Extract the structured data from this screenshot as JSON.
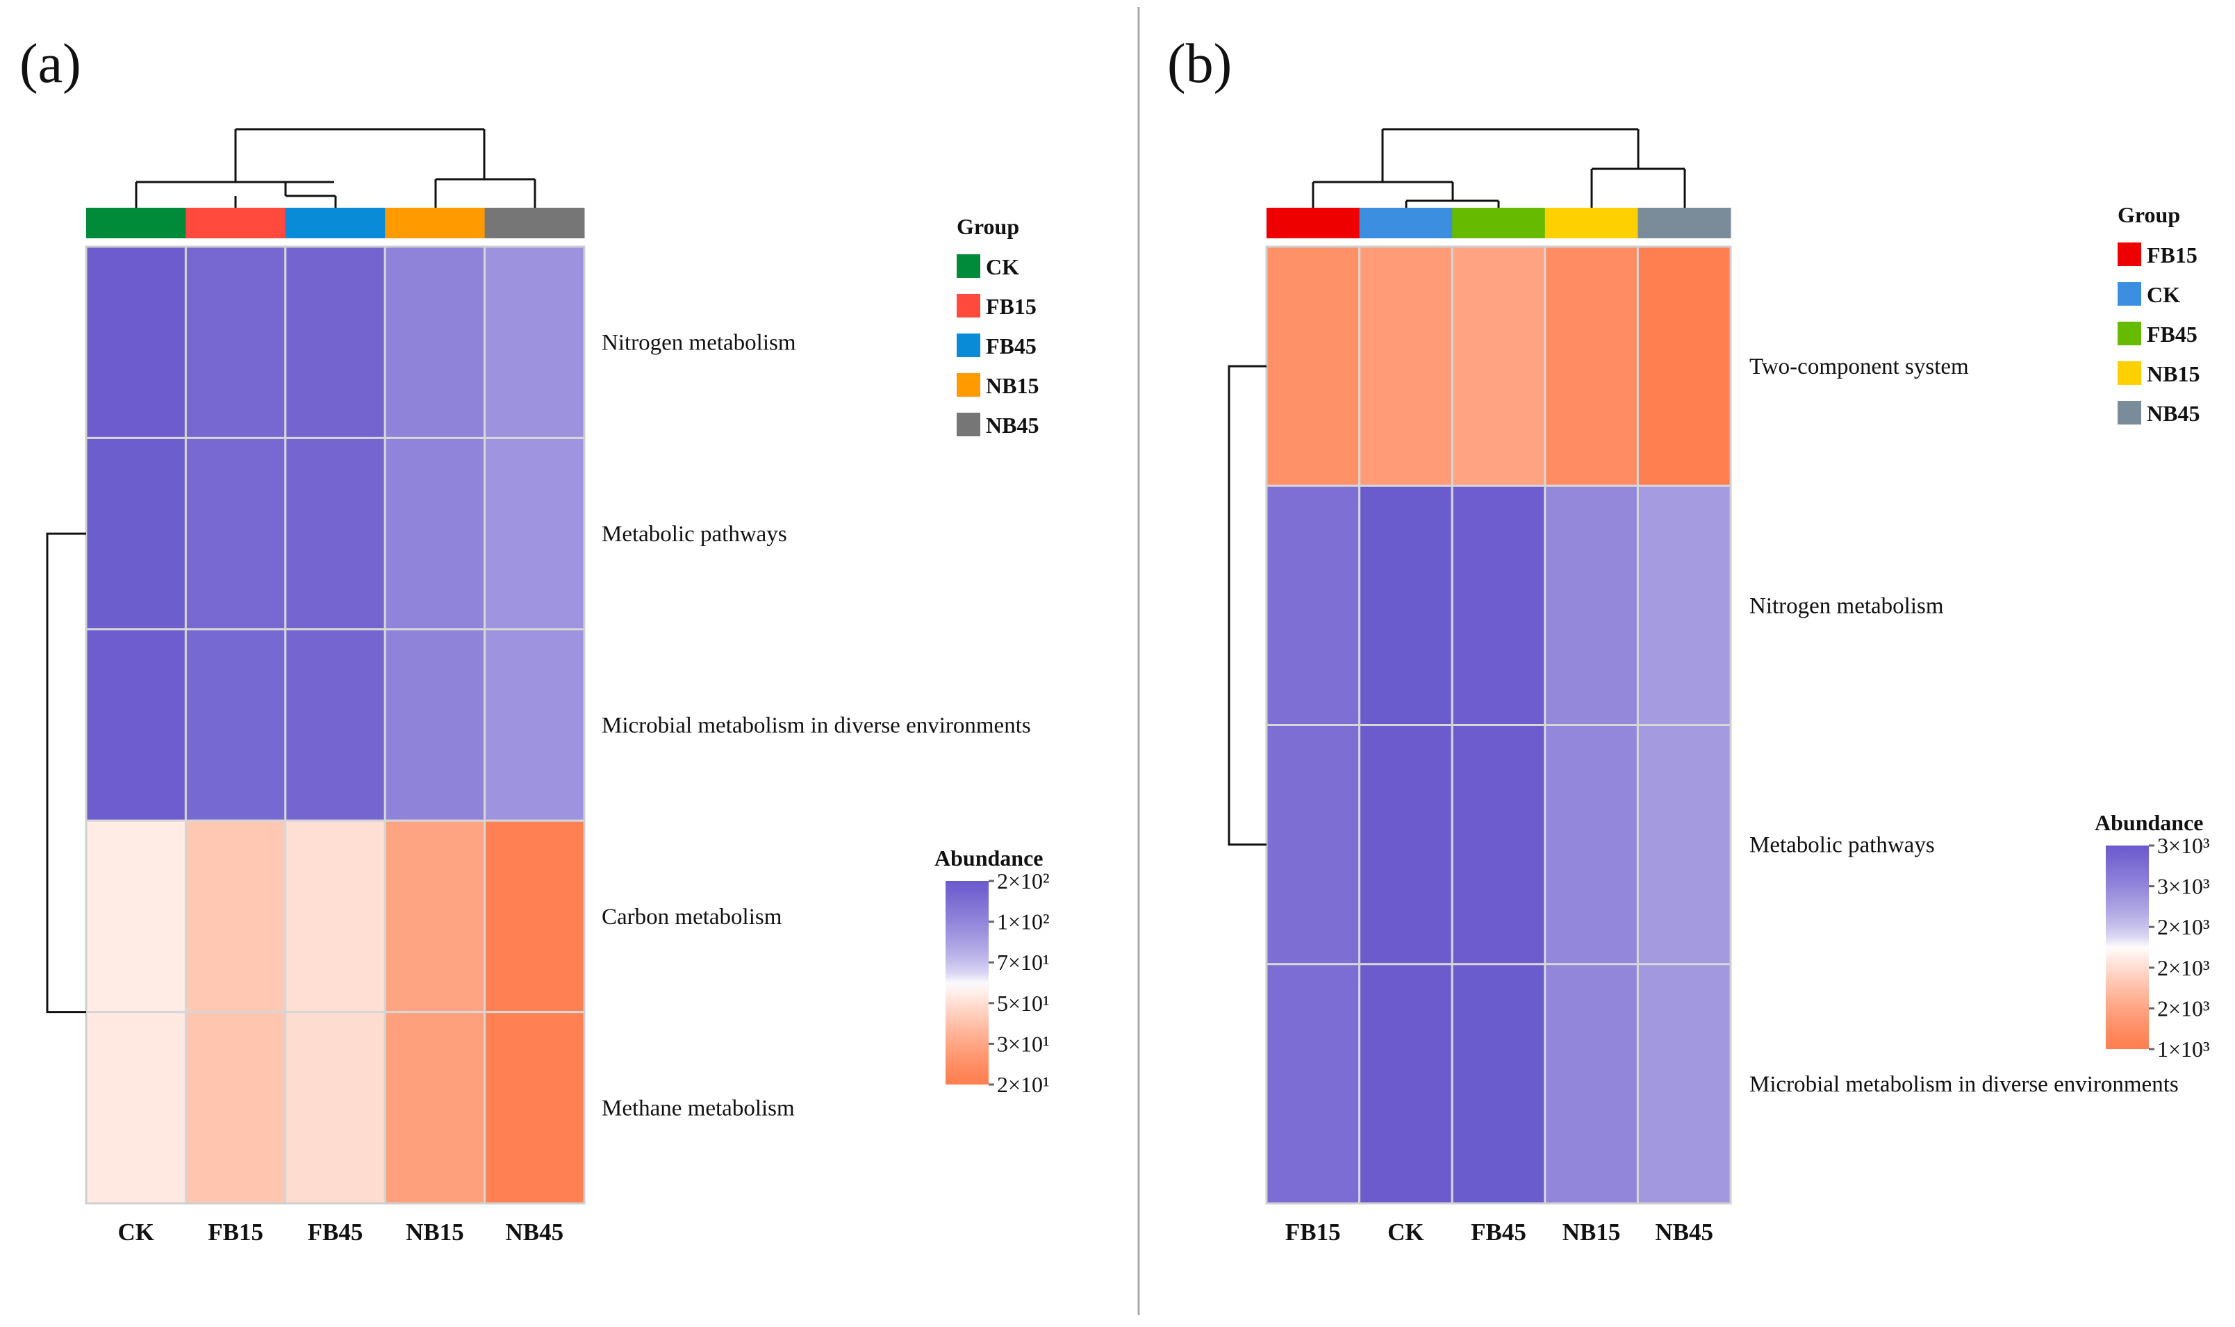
{
  "chart_data": [
    {
      "type": "heatmap",
      "panel_label": "(a)",
      "columns": [
        "CK",
        "FB15",
        "FB45",
        "NB15",
        "NB45"
      ],
      "rows": [
        "Nitrogen metabolism",
        "Metabolic pathways",
        "Microbial metabolism in diverse environments",
        "Carbon metabolism",
        "Methane metabolism"
      ],
      "values": [
        [
          195,
          170,
          178,
          130,
          112
        ],
        [
          192,
          168,
          176,
          128,
          110
        ],
        [
          193,
          169,
          177,
          129,
          111
        ],
        [
          55,
          42,
          50,
          31,
          21
        ],
        [
          54,
          41,
          49,
          30,
          21
        ]
      ],
      "scale": {
        "type": "log",
        "min": 20,
        "max": 200,
        "mid": 63,
        "low_color": "#ff7f50",
        "mid_color": "#ffffff",
        "high_color": "#6a5acd"
      },
      "legend_title": "Abundance",
      "legend_ticks": [
        "2×10²",
        "1×10²",
        "7×10¹",
        "5×10¹",
        "3×10¹",
        "2×10¹"
      ],
      "group_legend": {
        "title": "Group",
        "items": [
          {
            "label": "CK",
            "color": "#008b3a"
          },
          {
            "label": "FB15",
            "color": "#ff4a3d"
          },
          {
            "label": "FB45",
            "color": "#0a8bd8"
          },
          {
            "label": "NB15",
            "color": "#ff9a00"
          },
          {
            "label": "NB45",
            "color": "#767676"
          }
        ]
      },
      "column_groups": [
        "CK",
        "FB15",
        "FB45",
        "NB15",
        "NB45"
      ]
    },
    {
      "type": "heatmap",
      "panel_label": "(b)",
      "columns": [
        "FB15",
        "CK",
        "FB45",
        "NB15",
        "NB45"
      ],
      "rows": [
        "Two-component system",
        "Nitrogen metabolism",
        "Metabolic pathways",
        "Microbial metabolism in diverse environments"
      ],
      "values": [
        [
          1380,
          1440,
          1480,
          1350,
          1250
        ],
        [
          2750,
          2980,
          2960,
          2500,
          2350
        ],
        [
          2760,
          2990,
          2970,
          2510,
          2360
        ],
        [
          2770,
          2990,
          2980,
          2520,
          2370
        ]
      ],
      "scale": {
        "type": "log",
        "min": 1250,
        "max": 3000,
        "mid": 1950,
        "low_color": "#ff7f50",
        "mid_color": "#ffffff",
        "high_color": "#6a5acd"
      },
      "legend_title": "Abundance",
      "legend_ticks": [
        "3×10³",
        "3×10³",
        "2×10³",
        "2×10³",
        "2×10³",
        "1×10³"
      ],
      "group_legend": {
        "title": "Group",
        "items": [
          {
            "label": "FB15",
            "color": "#ee0000"
          },
          {
            "label": "CK",
            "color": "#3c8ee0"
          },
          {
            "label": "FB45",
            "color": "#66bb00"
          },
          {
            "label": "NB15",
            "color": "#ffd000"
          },
          {
            "label": "NB45",
            "color": "#7a8b99"
          }
        ]
      },
      "column_groups": [
        "FB15",
        "CK",
        "FB45",
        "NB15",
        "NB45"
      ]
    }
  ]
}
